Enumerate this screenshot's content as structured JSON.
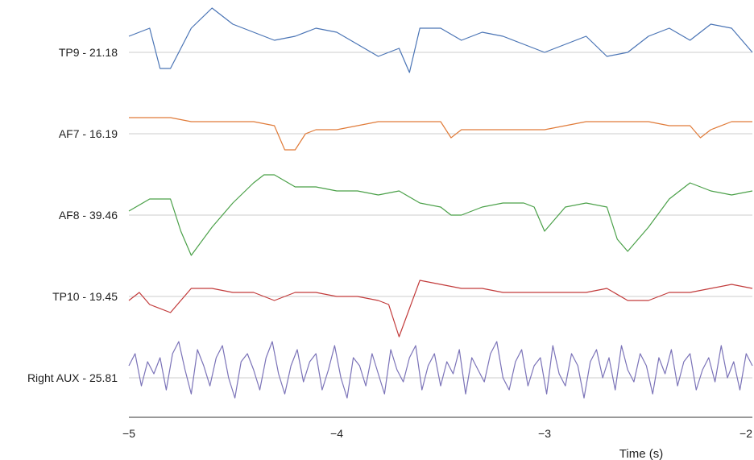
{
  "chart_data": {
    "type": "line",
    "title": "",
    "xlabel": "Time (s)",
    "xlim": [
      -5,
      -2
    ],
    "x_ticks": [
      -5,
      -4,
      -3,
      -2
    ],
    "x_tick_labels": [
      "−5",
      "−4",
      "−3",
      "−2"
    ],
    "grid": true,
    "channels": [
      {
        "label": "TP9 - 21.18",
        "color": "#4a74b5"
      },
      {
        "label": "AF7 - 16.19",
        "color": "#e07b39"
      },
      {
        "label": "AF8 - 39.46",
        "color": "#4aa048"
      },
      {
        "label": "TP10 - 19.45",
        "color": "#c23b3b"
      },
      {
        "label": "Right AUX - 25.81",
        "color": "#7b73b8"
      }
    ],
    "series": [
      {
        "x": [
          -5.0,
          -4.9,
          -4.85,
          -4.8,
          -4.7,
          -4.6,
          -4.5,
          -4.4,
          -4.3,
          -4.2,
          -4.1,
          -4.0,
          -3.9,
          -3.8,
          -3.7,
          -3.65,
          -3.6,
          -3.5,
          -3.4,
          -3.3,
          -3.2,
          -3.1,
          -3.0,
          -2.9,
          -2.8,
          -2.7,
          -2.6,
          -2.5,
          -2.4,
          -2.3,
          -2.2,
          -2.1,
          -2.0
        ],
        "y": [
          0.4,
          0.6,
          -0.4,
          -0.4,
          0.6,
          1.1,
          0.7,
          0.5,
          0.3,
          0.4,
          0.6,
          0.5,
          0.2,
          -0.1,
          0.1,
          -0.5,
          0.6,
          0.6,
          0.3,
          0.5,
          0.4,
          0.2,
          0.0,
          0.2,
          0.4,
          -0.1,
          0.0,
          0.4,
          0.6,
          0.3,
          0.7,
          0.6,
          0.0
        ]
      },
      {
        "x": [
          -5.0,
          -4.9,
          -4.8,
          -4.7,
          -4.6,
          -4.5,
          -4.4,
          -4.3,
          -4.25,
          -4.2,
          -4.15,
          -4.1,
          -4.0,
          -3.9,
          -3.8,
          -3.7,
          -3.6,
          -3.5,
          -3.45,
          -3.4,
          -3.3,
          -3.2,
          -3.1,
          -3.0,
          -2.9,
          -2.8,
          -2.7,
          -2.6,
          -2.5,
          -2.4,
          -2.3,
          -2.25,
          -2.2,
          -2.1,
          -2.0
        ],
        "y": [
          0.4,
          0.4,
          0.4,
          0.3,
          0.3,
          0.3,
          0.3,
          0.2,
          -0.4,
          -0.4,
          0.0,
          0.1,
          0.1,
          0.2,
          0.3,
          0.3,
          0.3,
          0.3,
          -0.1,
          0.1,
          0.1,
          0.1,
          0.1,
          0.1,
          0.2,
          0.3,
          0.3,
          0.3,
          0.3,
          0.2,
          0.2,
          -0.1,
          0.1,
          0.3,
          0.3
        ]
      },
      {
        "x": [
          -5.0,
          -4.9,
          -4.8,
          -4.75,
          -4.7,
          -4.6,
          -4.5,
          -4.4,
          -4.35,
          -4.3,
          -4.2,
          -4.1,
          -4.0,
          -3.9,
          -3.8,
          -3.7,
          -3.6,
          -3.5,
          -3.45,
          -3.4,
          -3.3,
          -3.2,
          -3.1,
          -3.05,
          -3.0,
          -2.9,
          -2.8,
          -2.7,
          -2.65,
          -2.6,
          -2.5,
          -2.4,
          -2.3,
          -2.2,
          -2.1,
          -2.0
        ],
        "y": [
          0.1,
          0.4,
          0.4,
          -0.4,
          -1.0,
          -0.3,
          0.3,
          0.8,
          1.0,
          1.0,
          0.7,
          0.7,
          0.6,
          0.6,
          0.5,
          0.6,
          0.3,
          0.2,
          0.0,
          0.0,
          0.2,
          0.3,
          0.3,
          0.2,
          -0.4,
          0.2,
          0.3,
          0.2,
          -0.6,
          -0.9,
          -0.3,
          0.4,
          0.8,
          0.6,
          0.5,
          0.6
        ]
      },
      {
        "x": [
          -5.0,
          -4.95,
          -4.9,
          -4.8,
          -4.7,
          -4.6,
          -4.5,
          -4.4,
          -4.3,
          -4.2,
          -4.1,
          -4.0,
          -3.9,
          -3.8,
          -3.75,
          -3.7,
          -3.65,
          -3.6,
          -3.5,
          -3.4,
          -3.3,
          -3.2,
          -3.1,
          -3.0,
          -2.9,
          -2.8,
          -2.7,
          -2.6,
          -2.5,
          -2.4,
          -2.3,
          -2.2,
          -2.1,
          -2.0
        ],
        "y": [
          -0.1,
          0.1,
          -0.2,
          -0.4,
          0.2,
          0.2,
          0.1,
          0.1,
          -0.1,
          0.1,
          0.1,
          0.0,
          0.0,
          -0.1,
          -0.2,
          -1.0,
          -0.3,
          0.4,
          0.3,
          0.2,
          0.2,
          0.1,
          0.1,
          0.1,
          0.1,
          0.1,
          0.2,
          -0.1,
          -0.1,
          0.1,
          0.1,
          0.2,
          0.3,
          0.2
        ]
      },
      {
        "x": [
          -5.0,
          -4.97,
          -4.94,
          -4.91,
          -4.88,
          -4.85,
          -4.82,
          -4.79,
          -4.76,
          -4.73,
          -4.7,
          -4.67,
          -4.64,
          -4.61,
          -4.58,
          -4.55,
          -4.52,
          -4.49,
          -4.46,
          -4.43,
          -4.4,
          -4.37,
          -4.34,
          -4.31,
          -4.28,
          -4.25,
          -4.22,
          -4.19,
          -4.16,
          -4.13,
          -4.1,
          -4.07,
          -4.04,
          -4.01,
          -3.98,
          -3.95,
          -3.92,
          -3.89,
          -3.86,
          -3.83,
          -3.8,
          -3.77,
          -3.74,
          -3.71,
          -3.68,
          -3.65,
          -3.62,
          -3.59,
          -3.56,
          -3.53,
          -3.5,
          -3.47,
          -3.44,
          -3.41,
          -3.38,
          -3.35,
          -3.32,
          -3.29,
          -3.26,
          -3.23,
          -3.2,
          -3.17,
          -3.14,
          -3.11,
          -3.08,
          -3.05,
          -3.02,
          -2.99,
          -2.96,
          -2.93,
          -2.9,
          -2.87,
          -2.84,
          -2.81,
          -2.78,
          -2.75,
          -2.72,
          -2.69,
          -2.66,
          -2.63,
          -2.6,
          -2.57,
          -2.54,
          -2.51,
          -2.48,
          -2.45,
          -2.42,
          -2.39,
          -2.36,
          -2.33,
          -2.3,
          -2.27,
          -2.24,
          -2.21,
          -2.18,
          -2.15,
          -2.12,
          -2.09,
          -2.06,
          -2.03,
          -2.0
        ],
        "y": [
          0.3,
          0.6,
          -0.2,
          0.4,
          0.1,
          0.5,
          -0.3,
          0.6,
          0.9,
          0.2,
          -0.4,
          0.7,
          0.3,
          -0.2,
          0.5,
          0.8,
          0.0,
          -0.5,
          0.4,
          0.6,
          0.2,
          -0.3,
          0.5,
          0.9,
          0.1,
          -0.4,
          0.3,
          0.7,
          -0.1,
          0.4,
          0.6,
          -0.3,
          0.2,
          0.8,
          0.0,
          -0.5,
          0.5,
          0.3,
          -0.2,
          0.6,
          0.1,
          -0.4,
          0.7,
          0.2,
          -0.1,
          0.5,
          0.8,
          -0.3,
          0.3,
          0.6,
          -0.2,
          0.4,
          0.1,
          0.7,
          -0.4,
          0.5,
          0.2,
          -0.1,
          0.6,
          0.9,
          0.0,
          -0.3,
          0.4,
          0.7,
          -0.2,
          0.3,
          0.5,
          -0.4,
          0.8,
          0.1,
          -0.2,
          0.6,
          0.3,
          -0.5,
          0.4,
          0.7,
          0.0,
          0.5,
          -0.3,
          0.8,
          0.2,
          -0.1,
          0.6,
          0.3,
          -0.4,
          0.5,
          0.1,
          0.7,
          -0.2,
          0.4,
          0.6,
          -0.3,
          0.2,
          0.5,
          -0.1,
          0.8,
          0.0,
          0.4,
          -0.3,
          0.6,
          0.3
        ]
      }
    ]
  }
}
